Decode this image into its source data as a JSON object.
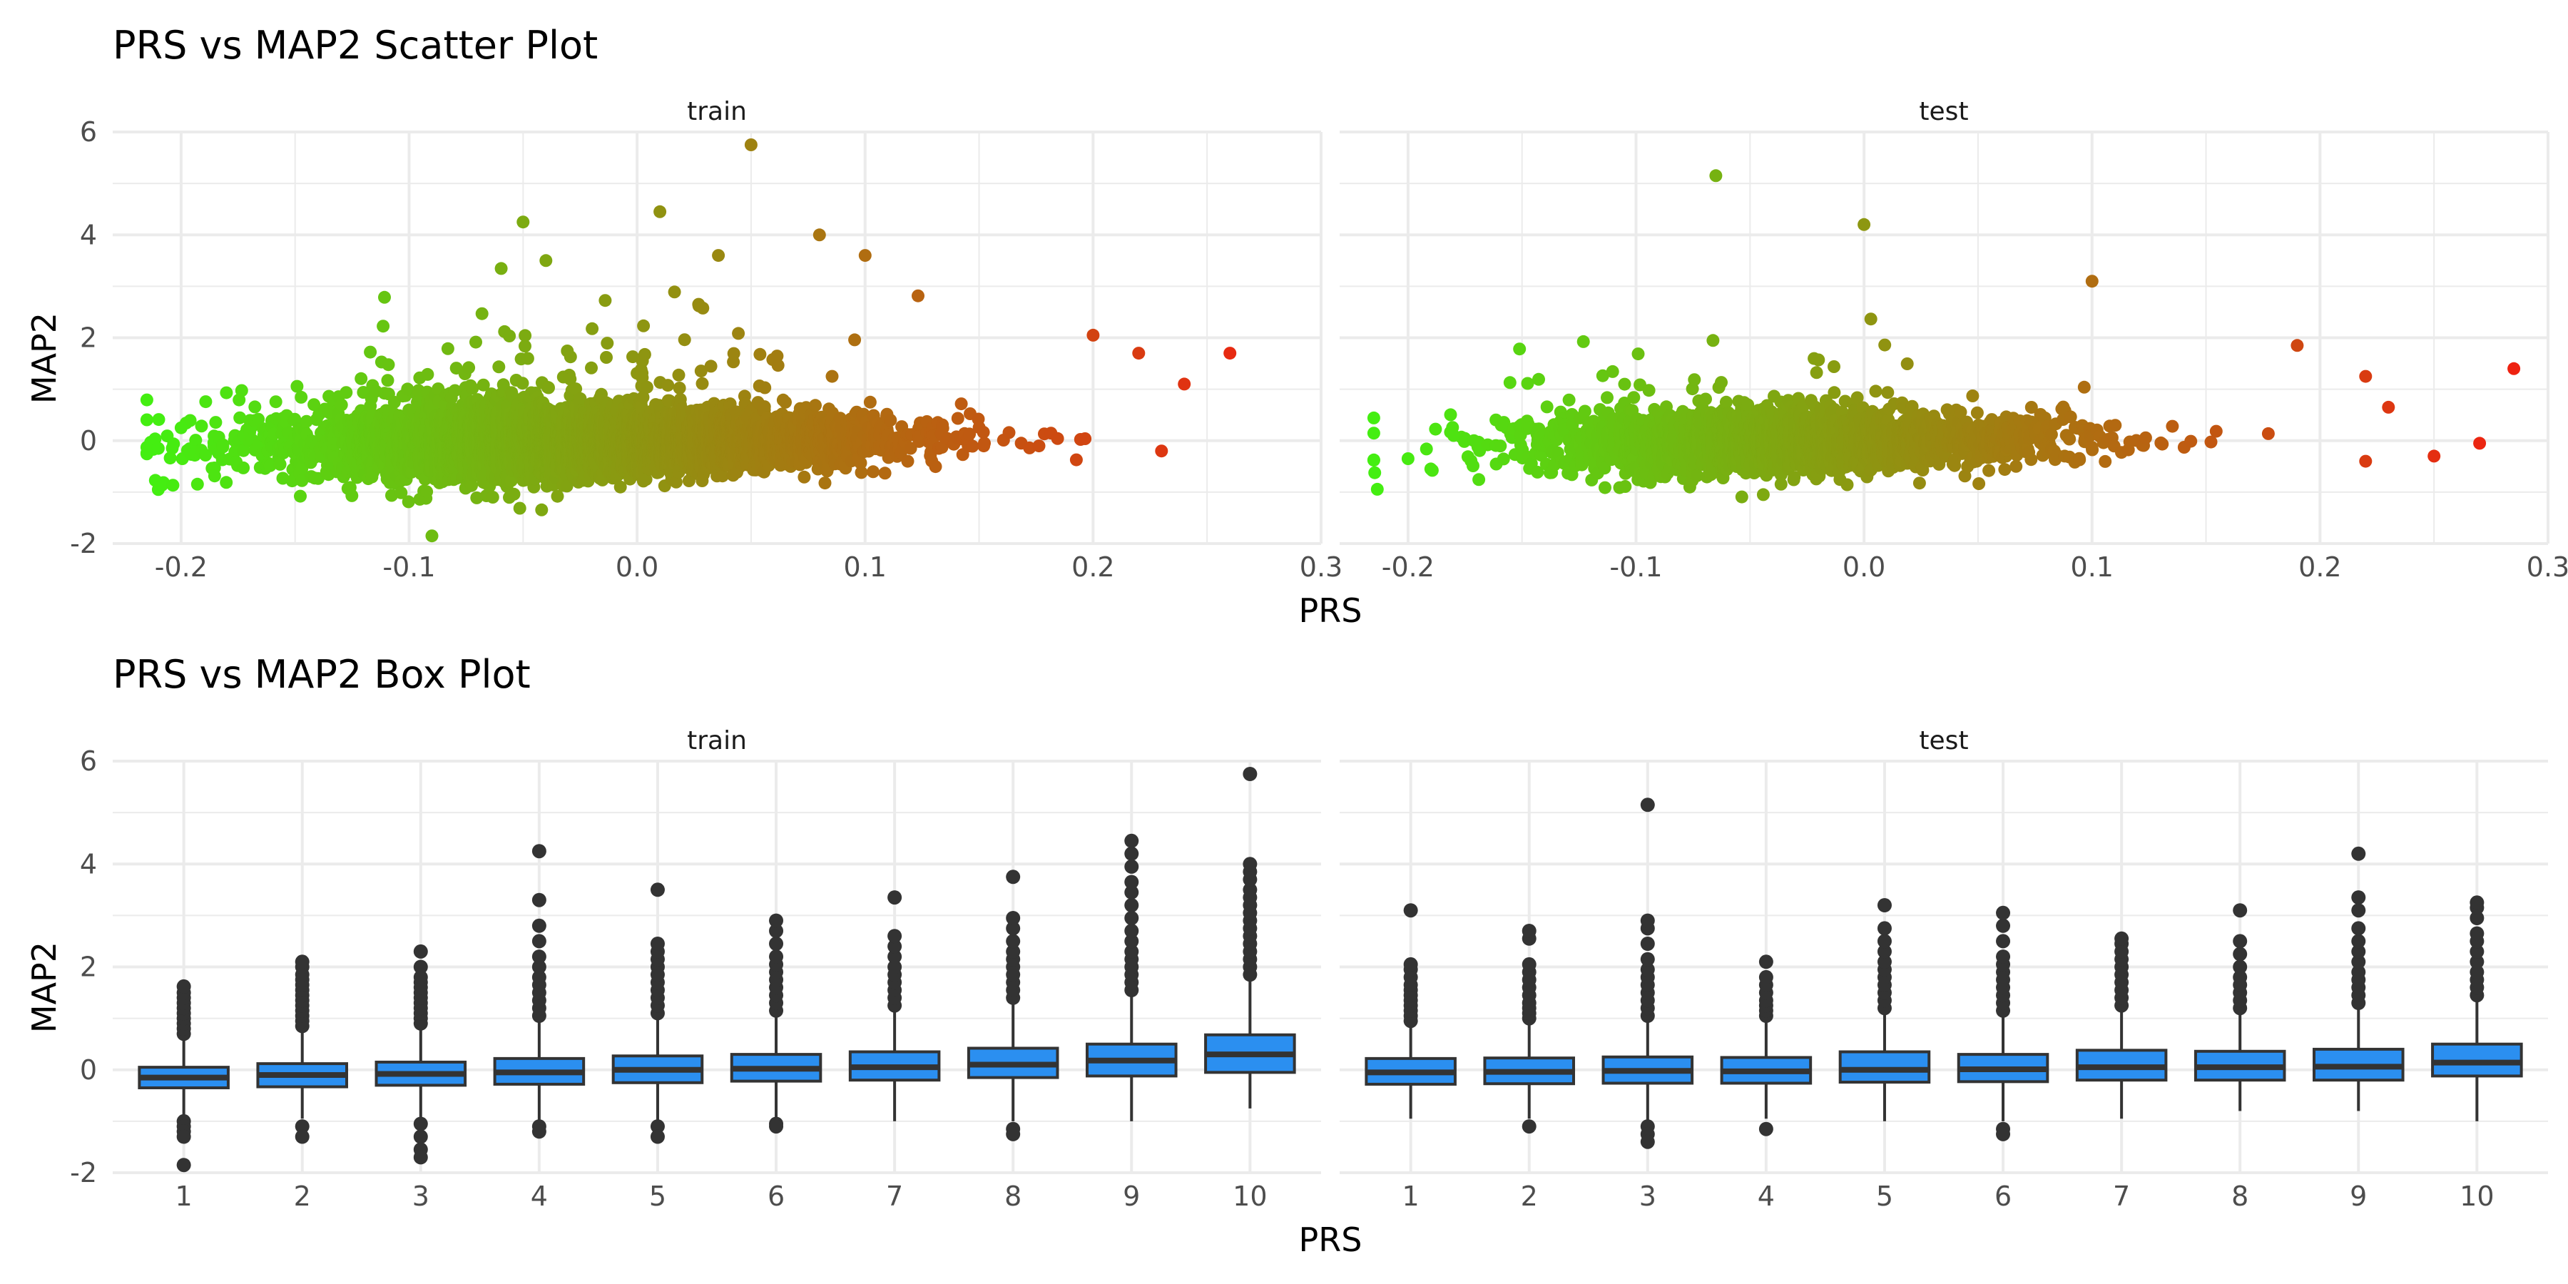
{
  "chart_data": [
    {
      "type": "scatter",
      "title": "PRS vs MAP2 Scatter Plot",
      "xlabel": "PRS",
      "ylabel": "MAP2",
      "xlim": [
        -0.23,
        0.3
      ],
      "ylim": [
        -2.0,
        6.0
      ],
      "x_ticks": [
        -0.2,
        -0.1,
        0.0,
        0.1,
        0.2,
        0.3
      ],
      "x_tick_labels": [
        "-0.2",
        "-0.1",
        "0.0",
        "0.1",
        "0.2",
        "0.3"
      ],
      "y_ticks": [
        -2,
        0,
        2,
        4,
        6
      ],
      "y_tick_labels": [
        "-2",
        "0",
        "2",
        "4",
        "6"
      ],
      "grid": true,
      "color_scale": {
        "low": "#44ee11",
        "high": "#ee2211",
        "mapped_to": "PRS"
      },
      "panels": [
        {
          "name": "train",
          "cloud": {
            "n": 6000,
            "x_center": -0.02,
            "x_sd": 0.062,
            "y_base": 0.0,
            "y_slope": 3.0,
            "y_sd_base": 0.55,
            "y_sd_slope": -1.2
          },
          "points": [
            {
              "x": -0.21,
              "y": -0.95
            },
            {
              "x": -0.21,
              "y": -0.15
            },
            {
              "x": -0.2,
              "y": 0.25
            },
            {
              "x": -0.09,
              "y": -1.85
            },
            {
              "x": -0.05,
              "y": 4.25
            },
            {
              "x": -0.04,
              "y": 3.5
            },
            {
              "x": 0.01,
              "y": 4.45
            },
            {
              "x": 0.05,
              "y": 5.75
            },
            {
              "x": 0.08,
              "y": 4.0
            },
            {
              "x": 0.1,
              "y": 3.6
            },
            {
              "x": 0.2,
              "y": 2.05
            },
            {
              "x": 0.22,
              "y": 1.7
            },
            {
              "x": 0.23,
              "y": -0.2
            },
            {
              "x": 0.24,
              "y": 1.1
            },
            {
              "x": 0.26,
              "y": 1.7
            }
          ]
        },
        {
          "name": "test",
          "cloud": {
            "n": 2500,
            "x_center": -0.03,
            "x_sd": 0.055,
            "y_base": 0.0,
            "y_slope": 3.0,
            "y_sd_base": 0.5,
            "y_sd_slope": -1.0
          },
          "points": [
            {
              "x": -0.2,
              "y": -0.35
            },
            {
              "x": -0.19,
              "y": -0.55
            },
            {
              "x": -0.18,
              "y": 0.1
            },
            {
              "x": -0.065,
              "y": 5.15
            },
            {
              "x": 0.0,
              "y": 4.2
            },
            {
              "x": 0.1,
              "y": 3.1
            },
            {
              "x": 0.19,
              "y": 1.85
            },
            {
              "x": 0.22,
              "y": 1.25
            },
            {
              "x": 0.22,
              "y": -0.4
            },
            {
              "x": 0.23,
              "y": 0.65
            },
            {
              "x": 0.25,
              "y": -0.3
            },
            {
              "x": 0.27,
              "y": -0.05
            },
            {
              "x": 0.285,
              "y": 1.4
            }
          ]
        }
      ]
    },
    {
      "type": "box",
      "title": "PRS vs MAP2 Box Plot",
      "xlabel": "PRS",
      "ylabel": "MAP2",
      "categories": [
        "1",
        "2",
        "3",
        "4",
        "5",
        "6",
        "7",
        "8",
        "9",
        "10"
      ],
      "ylim": [
        -2.0,
        6.0
      ],
      "y_ticks": [
        -2,
        0,
        2,
        4,
        6
      ],
      "y_tick_labels": [
        "-2",
        "0",
        "2",
        "4",
        "6"
      ],
      "grid": true,
      "box_color": "#2b8ff0",
      "panels": [
        {
          "name": "train",
          "boxes": [
            {
              "category": "1",
              "q1": -0.35,
              "median": -0.15,
              "q3": 0.05,
              "whisker_low": -0.9,
              "whisker_high": 0.6,
              "outliers_high": [
                0.7,
                0.8,
                0.9,
                1.0,
                1.1,
                1.2,
                1.3,
                1.4,
                1.5,
                1.62
              ],
              "outliers_low": [
                -1.0,
                -1.1,
                -1.2,
                -1.3,
                -1.85
              ]
            },
            {
              "category": "2",
              "q1": -0.33,
              "median": -0.1,
              "q3": 0.12,
              "whisker_low": -0.95,
              "whisker_high": 0.75,
              "outliers_high": [
                0.85,
                0.95,
                1.05,
                1.15,
                1.25,
                1.35,
                1.45,
                1.55,
                1.65,
                1.75,
                1.85,
                2.0,
                2.1
              ],
              "outliers_low": [
                -1.1,
                -1.3
              ]
            },
            {
              "category": "3",
              "q1": -0.3,
              "median": -0.08,
              "q3": 0.15,
              "whisker_low": -0.95,
              "whisker_high": 0.8,
              "outliers_high": [
                0.9,
                1.0,
                1.1,
                1.2,
                1.3,
                1.4,
                1.5,
                1.6,
                1.7,
                1.8,
                2.0,
                2.3
              ],
              "outliers_low": [
                -1.05,
                -1.3,
                -1.55,
                -1.7
              ]
            },
            {
              "category": "4",
              "q1": -0.28,
              "median": -0.05,
              "q3": 0.22,
              "whisker_low": -1.0,
              "whisker_high": 0.95,
              "outliers_high": [
                1.05,
                1.2,
                1.35,
                1.5,
                1.65,
                1.8,
                2.0,
                2.2,
                2.5,
                2.8,
                3.3,
                4.25
              ],
              "outliers_low": [
                -1.1,
                -1.2
              ]
            },
            {
              "category": "5",
              "q1": -0.25,
              "median": 0.0,
              "q3": 0.27,
              "whisker_low": -1.0,
              "whisker_high": 1.0,
              "outliers_high": [
                1.1,
                1.25,
                1.4,
                1.55,
                1.7,
                1.85,
                2.0,
                2.15,
                2.3,
                2.45,
                3.5
              ],
              "outliers_low": [
                -1.1,
                -1.3
              ]
            },
            {
              "category": "6",
              "q1": -0.22,
              "median": 0.02,
              "q3": 0.3,
              "whisker_low": -1.0,
              "whisker_high": 1.05,
              "outliers_high": [
                1.15,
                1.3,
                1.45,
                1.6,
                1.75,
                1.9,
                2.05,
                2.2,
                2.45,
                2.7,
                2.9
              ],
              "outliers_low": [
                -1.05,
                -1.1
              ]
            },
            {
              "category": "7",
              "q1": -0.2,
              "median": 0.05,
              "q3": 0.35,
              "whisker_low": -1.0,
              "whisker_high": 1.15,
              "outliers_high": [
                1.25,
                1.4,
                1.55,
                1.7,
                1.85,
                2.0,
                2.2,
                2.4,
                2.6,
                3.35
              ]
            },
            {
              "category": "8",
              "q1": -0.15,
              "median": 0.1,
              "q3": 0.42,
              "whisker_low": -1.0,
              "whisker_high": 1.3,
              "outliers_high": [
                1.4,
                1.55,
                1.7,
                1.85,
                2.0,
                2.15,
                2.3,
                2.5,
                2.75,
                2.95,
                3.75
              ],
              "outliers_low": [
                -1.15,
                -1.25
              ]
            },
            {
              "category": "9",
              "q1": -0.12,
              "median": 0.18,
              "q3": 0.5,
              "whisker_low": -1.0,
              "whisker_high": 1.45,
              "outliers_high": [
                1.55,
                1.7,
                1.85,
                2.0,
                2.15,
                2.3,
                2.5,
                2.7,
                2.95,
                3.2,
                3.45,
                3.65,
                3.95,
                4.2,
                4.45
              ]
            },
            {
              "category": "10",
              "q1": -0.05,
              "median": 0.3,
              "q3": 0.68,
              "whisker_low": -0.75,
              "whisker_high": 1.75,
              "outliers_high": [
                1.85,
                2.0,
                2.15,
                2.3,
                2.45,
                2.6,
                2.75,
                2.9,
                3.05,
                3.2,
                3.35,
                3.5,
                3.7,
                3.85,
                4.0,
                5.75
              ]
            }
          ]
        },
        {
          "name": "test",
          "boxes": [
            {
              "category": "1",
              "q1": -0.28,
              "median": -0.05,
              "q3": 0.22,
              "whisker_low": -0.95,
              "whisker_high": 0.85,
              "outliers_high": [
                0.95,
                1.05,
                1.15,
                1.25,
                1.35,
                1.45,
                1.55,
                1.65,
                1.8,
                1.95,
                2.05,
                3.1
              ]
            },
            {
              "category": "2",
              "q1": -0.27,
              "median": -0.04,
              "q3": 0.23,
              "whisker_low": -0.95,
              "whisker_high": 0.9,
              "outliers_high": [
                1.0,
                1.1,
                1.2,
                1.3,
                1.45,
                1.6,
                1.75,
                1.9,
                2.05,
                2.55,
                2.7
              ],
              "outliers_low": [
                -1.1
              ]
            },
            {
              "category": "3",
              "q1": -0.26,
              "median": -0.02,
              "q3": 0.25,
              "whisker_low": -1.0,
              "whisker_high": 0.95,
              "outliers_high": [
                1.05,
                1.2,
                1.35,
                1.5,
                1.65,
                1.8,
                1.95,
                2.15,
                2.45,
                2.75,
                2.9,
                5.15
              ],
              "outliers_low": [
                -1.1,
                -1.25,
                -1.4
              ]
            },
            {
              "category": "4",
              "q1": -0.26,
              "median": -0.03,
              "q3": 0.24,
              "whisker_low": -0.95,
              "whisker_high": 0.95,
              "outliers_high": [
                1.05,
                1.15,
                1.25,
                1.35,
                1.5,
                1.65,
                1.8,
                2.1
              ],
              "outliers_low": [
                -1.15
              ]
            },
            {
              "category": "5",
              "q1": -0.24,
              "median": 0.0,
              "q3": 0.35,
              "whisker_low": -1.0,
              "whisker_high": 1.1,
              "outliers_high": [
                1.2,
                1.35,
                1.5,
                1.65,
                1.8,
                1.95,
                2.1,
                2.3,
                2.5,
                2.75,
                3.2
              ]
            },
            {
              "category": "6",
              "q1": -0.23,
              "median": 0.01,
              "q3": 0.3,
              "whisker_low": -1.0,
              "whisker_high": 1.05,
              "outliers_high": [
                1.15,
                1.3,
                1.45,
                1.6,
                1.75,
                1.9,
                2.05,
                2.2,
                2.5,
                2.8,
                3.05
              ],
              "outliers_low": [
                -1.15,
                -1.25
              ]
            },
            {
              "category": "7",
              "q1": -0.2,
              "median": 0.05,
              "q3": 0.38,
              "whisker_low": -0.95,
              "whisker_high": 1.15,
              "outliers_high": [
                1.25,
                1.4,
                1.55,
                1.7,
                1.85,
                2.0,
                2.15,
                2.3,
                2.45,
                2.55
              ]
            },
            {
              "category": "8",
              "q1": -0.2,
              "median": 0.05,
              "q3": 0.36,
              "whisker_low": -0.8,
              "whisker_high": 1.1,
              "outliers_high": [
                1.2,
                1.35,
                1.5,
                1.65,
                1.8,
                2.0,
                2.25,
                2.5,
                3.1
              ]
            },
            {
              "category": "9",
              "q1": -0.2,
              "median": 0.06,
              "q3": 0.4,
              "whisker_low": -0.8,
              "whisker_high": 1.2,
              "outliers_high": [
                1.3,
                1.45,
                1.6,
                1.75,
                1.9,
                2.1,
                2.3,
                2.5,
                2.75,
                3.1,
                3.35,
                4.2
              ]
            },
            {
              "category": "10",
              "q1": -0.12,
              "median": 0.14,
              "q3": 0.5,
              "whisker_low": -1.0,
              "whisker_high": 1.35,
              "outliers_high": [
                1.45,
                1.6,
                1.75,
                1.9,
                2.1,
                2.3,
                2.5,
                2.65,
                2.95,
                3.15,
                3.25
              ]
            }
          ]
        }
      ]
    }
  ]
}
